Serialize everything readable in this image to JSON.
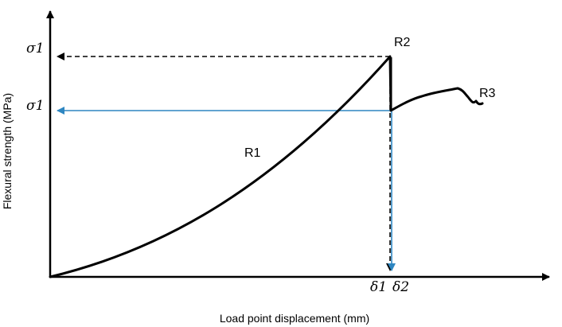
{
  "axes": {
    "x_label": "Load point displacement (mm)",
    "y_label": "Flexural strength (MPa)"
  },
  "y_markers": {
    "upper": "σ1",
    "lower": "σ1"
  },
  "x_markers": {
    "first": "δ1",
    "second": "δ2"
  },
  "regions": {
    "r1": "R1",
    "r2": "R2",
    "r3": "R3"
  },
  "colors": {
    "curve": "#000000",
    "axes": "#000000",
    "guide_dashed": "#000000",
    "guide_blue": "#2e86c1"
  }
}
